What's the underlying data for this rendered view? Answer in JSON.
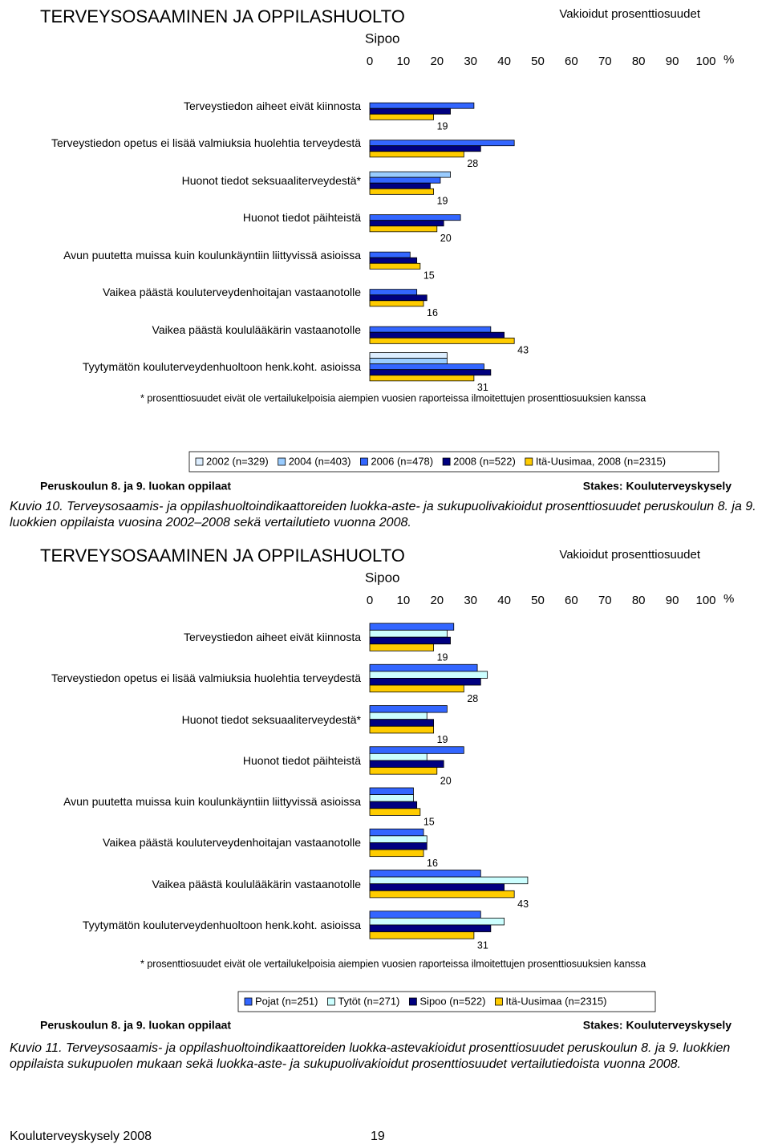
{
  "chart_data": [
    {
      "type": "bar",
      "orientation": "horizontal",
      "title": "TERVEYSOSAAMINEN JA OPPILASHUOLTO",
      "subtitle": "Sipoo",
      "note": "Vakioidut prosenttiosuudet",
      "x_unit": "%",
      "categories": [
        "Terveystiedon aiheet eivät kiinnosta",
        "Terveystiedon opetus ei lisää valmiuksia huolehtia terveydestä",
        "Huonot tiedot seksuaaliterveydestä*",
        "Huonot tiedot päihteistä",
        "Avun puutetta muissa kuin koulunkäyntiin liittyvissä asioissa",
        "Vaikea päästä kouluterveydenhoitajan vastaanotolle",
        "Vaikea päästä koululääkärin vastaanotolle",
        "Tyytymätön kouluterveydenhuoltoon henk.koht. asioissa"
      ],
      "series": [
        {
          "name": "2002 (n=329)",
          "color": "#ddeeff",
          "values": [
            null,
            null,
            null,
            null,
            null,
            null,
            null,
            23
          ]
        },
        {
          "name": "2004 (n=403)",
          "color": "#99ccff",
          "values": [
            null,
            null,
            24,
            null,
            null,
            null,
            null,
            23
          ]
        },
        {
          "name": "2006 (n=478)",
          "color": "#3366ff",
          "values": [
            31,
            43,
            21,
            27,
            12,
            14,
            36,
            34
          ]
        },
        {
          "name": "2008 (n=522)",
          "color": "#000080",
          "values": [
            24,
            33,
            18,
            22,
            14,
            17,
            40,
            36
          ]
        },
        {
          "name": "Itä-Uusimaa, 2008 (n=2315)",
          "color": "#ffcc00",
          "values": [
            19,
            28,
            19,
            20,
            15,
            16,
            43,
            31
          ],
          "show_labels": true
        }
      ],
      "xlim": [
        0,
        100
      ],
      "xticks": [
        0,
        10,
        20,
        30,
        40,
        50,
        60,
        70,
        80,
        90,
        100
      ],
      "grid": false,
      "legend": "bottom",
      "footnote": "* prosenttiosuudet eivät ole vertailukelpoisia aiempien vuosien raporteissa ilmoitettujen prosenttiosuuksien kanssa",
      "population": "Peruskoulun 8. ja 9. luokan oppilaat",
      "source": "Stakes: Kouluterveyskysely"
    },
    {
      "type": "bar",
      "orientation": "horizontal",
      "title": "TERVEYSOSAAMINEN JA OPPILASHUOLTO",
      "subtitle": "Sipoo",
      "note": "Vakioidut prosenttiosuudet",
      "x_unit": "%",
      "categories": [
        "Terveystiedon aiheet eivät kiinnosta",
        "Terveystiedon opetus ei lisää valmiuksia huolehtia terveydestä",
        "Huonot tiedot seksuaaliterveydestä*",
        "Huonot tiedot päihteistä",
        "Avun puutetta muissa kuin koulunkäyntiin liittyvissä asioissa",
        "Vaikea päästä kouluterveydenhoitajan vastaanotolle",
        "Vaikea päästä koululääkärin vastaanotolle",
        "Tyytymätön kouluterveydenhuoltoon henk.koht. asioissa"
      ],
      "series": [
        {
          "name": "Pojat (n=251)",
          "color": "#3366ff",
          "values": [
            25,
            32,
            23,
            28,
            13,
            16,
            33,
            33
          ]
        },
        {
          "name": "Tytöt (n=271)",
          "color": "#ccffff",
          "values": [
            23,
            35,
            17,
            17,
            13,
            17,
            47,
            40
          ]
        },
        {
          "name": "Sipoo (n=522)",
          "color": "#000080",
          "values": [
            24,
            33,
            19,
            22,
            14,
            17,
            40,
            36
          ]
        },
        {
          "name": "Itä-Uusimaa (n=2315)",
          "color": "#ffcc00",
          "values": [
            19,
            28,
            19,
            20,
            15,
            16,
            43,
            31
          ],
          "show_labels": true
        }
      ],
      "xlim": [
        0,
        100
      ],
      "xticks": [
        0,
        10,
        20,
        30,
        40,
        50,
        60,
        70,
        80,
        90,
        100
      ],
      "grid": false,
      "legend": "bottom",
      "footnote": "* prosenttiosuudet eivät ole vertailukelpoisia aiempien vuosien raporteissa ilmoitettujen prosenttiosuuksien kanssa",
      "population": "Peruskoulun 8. ja 9. luokan oppilaat",
      "source": "Stakes: Kouluterveyskysely"
    }
  ],
  "captions": [
    "Kuvio 10. Terveysosaamis- ja oppilashuoltoindikaattoreiden luokka-aste- ja sukupuolivakioidut prosenttiosuudet peruskoulun 8. ja 9. luokkien oppilaista vuosina 2002–2008 sekä vertailutieto vuonna 2008.",
    "Kuvio 11. Terveysosaamis- ja oppilashuoltoindikaattoreiden luokka-astevakioidut prosenttiosuudet peruskoulun 8. ja 9. luokkien oppilaista sukupuolen mukaan sekä luokka-aste- ja sukupuolivakioidut prosenttiosuudet vertailutiedoista vuonna 2008."
  ],
  "footer": {
    "left": "Kouluterveyskysely 2008",
    "page": "19"
  }
}
